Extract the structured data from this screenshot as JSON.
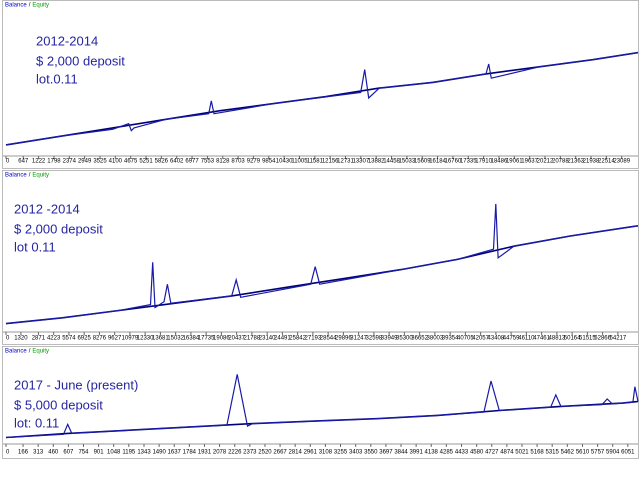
{
  "chart_data": [
    {
      "type": "line",
      "legend_separator": "/",
      "annotations": [
        "2012-2014",
        "$ 2,000 deposit",
        "lot.0.11"
      ],
      "xlim": [
        0,
        23700
      ],
      "ylim": [
        0,
        100
      ],
      "xticks": [
        0,
        647,
        1222,
        1798,
        2374,
        2949,
        3525,
        4100,
        4675,
        5251,
        5826,
        6402,
        6977,
        7553,
        8128,
        8703,
        9279,
        9854,
        10430,
        11005,
        11581,
        12156,
        12731,
        13307,
        13882,
        14458,
        15033,
        15609,
        16184,
        16760,
        17335,
        17910,
        18486,
        19061,
        19637,
        20212,
        20788,
        21363,
        21938,
        22514,
        23089
      ],
      "series": [
        {
          "name": "Balance",
          "color": "#00007a",
          "x": [
            0,
            2000,
            4000,
            6000,
            8000,
            10000,
            12000,
            14000,
            16000,
            18000,
            20000,
            22000,
            23700
          ],
          "values": [
            5,
            11,
            17,
            23,
            29,
            34,
            39,
            45,
            49,
            55,
            60,
            65,
            70
          ]
        },
        {
          "name": "Equity",
          "color": "#1a1aa8",
          "x": [
            0,
            2000,
            4000,
            4600,
            4700,
            4800,
            6000,
            7600,
            7700,
            7800,
            10000,
            13300,
            13450,
            13600,
            14000,
            16000,
            18000,
            18100,
            18200,
            20000,
            22000,
            23700
          ],
          "values": [
            5,
            11,
            16,
            20,
            15,
            17,
            23,
            27,
            36,
            27,
            34,
            42,
            58,
            38,
            45,
            49,
            55,
            62,
            52,
            60,
            65,
            70
          ]
        }
      ]
    },
    {
      "type": "line",
      "legend_separator": "/",
      "annotations": [
        "2012 -2014",
        "$ 2,000 deposit",
        "lot 0.11"
      ],
      "xlim": [
        0,
        56000
      ],
      "ylim": [
        0,
        100
      ],
      "xticks": [
        0,
        1320,
        2871,
        4223,
        5574,
        6925,
        8276,
        9627,
        10979,
        12330,
        13681,
        15032,
        16384,
        17735,
        19086,
        20437,
        21788,
        23140,
        24491,
        25842,
        27193,
        28544,
        29896,
        31247,
        32598,
        33949,
        35300,
        36652,
        38003,
        39354,
        40705,
        42057,
        43408,
        44759,
        46110,
        47461,
        48813,
        50164,
        51515,
        52866,
        54217
      ],
      "series": [
        {
          "name": "Balance",
          "color": "#00007a",
          "x": [
            0,
            5000,
            10000,
            15000,
            20000,
            25000,
            30000,
            35000,
            40000,
            45000,
            50000,
            56000
          ],
          "values": [
            3,
            7,
            12,
            17,
            22,
            28,
            34,
            40,
            47,
            56,
            63,
            70
          ]
        },
        {
          "name": "Equity",
          "color": "#1a1aa8",
          "x": [
            0,
            5000,
            10000,
            12800,
            13000,
            13200,
            14000,
            14300,
            14600,
            20000,
            20400,
            20800,
            27000,
            27400,
            27800,
            35000,
            40000,
            43200,
            43400,
            43600,
            45000,
            50000,
            56000
          ],
          "values": [
            3,
            7,
            12,
            16,
            45,
            14,
            18,
            30,
            17,
            22,
            33,
            21,
            30,
            42,
            30,
            40,
            47,
            54,
            85,
            48,
            56,
            63,
            70
          ]
        }
      ]
    },
    {
      "type": "line",
      "legend_separator": "/",
      "annotations": [
        "2017 - June (present)",
        "$ 5,000 deposit",
        "lot: 0.11"
      ],
      "xlim": [
        0,
        6150
      ],
      "ylim": [
        0,
        100
      ],
      "xticks": [
        0,
        166,
        313,
        460,
        607,
        754,
        901,
        1048,
        1195,
        1343,
        1490,
        1637,
        1784,
        1931,
        2078,
        2226,
        2373,
        2520,
        2667,
        2814,
        2961,
        3108,
        3255,
        3403,
        3550,
        3697,
        3844,
        3991,
        4138,
        4285,
        4433,
        4580,
        4727,
        4874,
        5021,
        5168,
        5315,
        5462,
        5610,
        5757,
        5904,
        6051
      ],
      "series": [
        {
          "name": "Balance",
          "color": "#00007a",
          "x": [
            0,
            600,
            1200,
            1800,
            2400,
            3000,
            3600,
            4200,
            4800,
            5400,
            6000,
            6150
          ],
          "values": [
            3,
            8,
            12,
            16,
            20,
            23,
            26,
            30,
            36,
            41,
            45,
            47
          ]
        },
        {
          "name": "Equity",
          "color": "#1a1aa8",
          "x": [
            0,
            560,
            600,
            640,
            1200,
            1800,
            2150,
            2250,
            2350,
            2400,
            3000,
            3600,
            4200,
            4650,
            4720,
            4800,
            5300,
            5350,
            5400,
            5800,
            5850,
            5900,
            6000,
            6100,
            6120,
            6150
          ],
          "values": [
            3,
            7,
            19,
            8,
            12,
            16,
            18,
            80,
            17,
            20,
            23,
            26,
            30,
            34,
            72,
            36,
            40,
            55,
            41,
            43,
            50,
            44,
            45,
            46,
            65,
            47
          ]
        }
      ]
    }
  ]
}
